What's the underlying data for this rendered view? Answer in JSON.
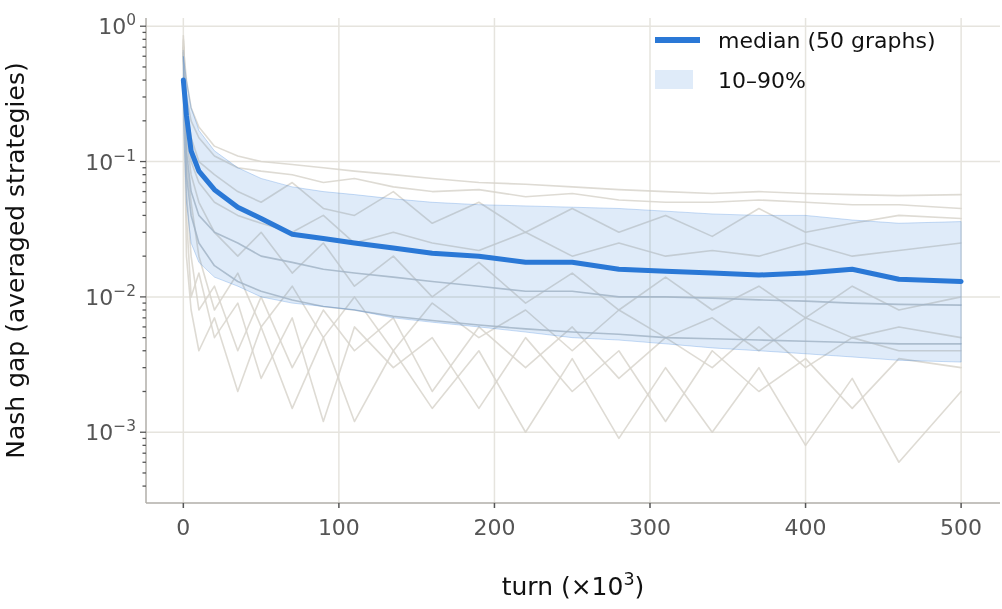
{
  "chart_data": {
    "type": "line",
    "xlabel": "turn (×10$^{3}$)",
    "ylabel": "Nash gap (averaged strategies)",
    "log": "y",
    "grid": true,
    "legend": "top right",
    "annotations": [
      "10–90%"
    ],
    "xlim": [
      -24,
      525
    ],
    "xticks": [
      0,
      100,
      200,
      300,
      400,
      500
    ],
    "ylim": [
      0.0003,
      1.15
    ],
    "yticks": [
      {
        "value": 0.0004,
        "label": null
      },
      {
        "value": 0.0005,
        "label": null
      },
      {
        "value": 0.0006,
        "label": null
      },
      {
        "value": 0.0007,
        "label": null
      },
      {
        "value": 0.0008,
        "label": null
      },
      {
        "value": 0.0009,
        "label": null
      },
      {
        "value": 0.001,
        "label": "10$^{−3}$"
      },
      {
        "value": 0.002,
        "label": null
      },
      {
        "value": 0.003,
        "label": null
      },
      {
        "value": 0.004,
        "label": null
      },
      {
        "value": 0.005,
        "label": null
      },
      {
        "value": 0.006,
        "label": null
      },
      {
        "value": 0.007,
        "label": null
      },
      {
        "value": 0.008,
        "label": null
      },
      {
        "value": 0.009,
        "label": null
      },
      {
        "value": 0.01,
        "label": "10$^{−2}$"
      },
      {
        "value": 0.02,
        "label": null
      },
      {
        "value": 0.03,
        "label": null
      },
      {
        "value": 0.04,
        "label": null
      },
      {
        "value": 0.05,
        "label": null
      },
      {
        "value": 0.06,
        "label": null
      },
      {
        "value": 0.07,
        "label": null
      },
      {
        "value": 0.08,
        "label": null
      },
      {
        "value": 0.09,
        "label": null
      },
      {
        "value": 0.1,
        "label": "10$^{−1}$"
      },
      {
        "value": 0.2,
        "label": null
      },
      {
        "value": 0.3,
        "label": null
      },
      {
        "value": 0.4,
        "label": null
      },
      {
        "value": 0.5,
        "label": null
      },
      {
        "value": 0.6,
        "label": null
      },
      {
        "value": 0.7,
        "label": null
      },
      {
        "value": 0.8,
        "label": null
      },
      {
        "value": 0.9,
        "label": null
      },
      {
        "value": 1,
        "label": "10$^{0}$"
      }
    ],
    "x": [
      0,
      2,
      5,
      10,
      20,
      35,
      50,
      70,
      90,
      110,
      135,
      160,
      190,
      220,
      250,
      280,
      310,
      340,
      370,
      400,
      430,
      460,
      500
    ],
    "series": [
      {
        "color": "#d8d5cc",
        "values": [
          0.7,
          0.4,
          0.25,
          0.18,
          0.13,
          0.11,
          0.1,
          0.095,
          0.09,
          0.085,
          0.08,
          0.075,
          0.07,
          0.068,
          0.065,
          0.062,
          0.06,
          0.058,
          0.06,
          0.058,
          0.057,
          0.056,
          0.057
        ]
      },
      {
        "color": "#d8d5cc",
        "values": [
          0.6,
          0.3,
          0.2,
          0.15,
          0.11,
          0.09,
          0.085,
          0.08,
          0.07,
          0.075,
          0.065,
          0.06,
          0.062,
          0.055,
          0.058,
          0.052,
          0.05,
          0.05,
          0.052,
          0.05,
          0.048,
          0.048,
          0.045
        ]
      },
      {
        "color": "#d8d5cc",
        "values": [
          0.85,
          0.25,
          0.15,
          0.1,
          0.08,
          0.06,
          0.05,
          0.07,
          0.045,
          0.04,
          0.06,
          0.035,
          0.05,
          0.03,
          0.045,
          0.03,
          0.04,
          0.028,
          0.045,
          0.03,
          0.035,
          0.04,
          0.038
        ]
      },
      {
        "color": "#d8d5cc",
        "values": [
          0.8,
          0.2,
          0.1,
          0.07,
          0.05,
          0.04,
          0.035,
          0.03,
          0.04,
          0.025,
          0.03,
          0.025,
          0.022,
          0.03,
          0.02,
          0.025,
          0.02,
          0.022,
          0.02,
          0.025,
          0.02,
          0.022,
          0.025
        ]
      },
      {
        "color": "#d8d5cc",
        "values": [
          0.75,
          0.15,
          0.08,
          0.05,
          0.03,
          0.02,
          0.03,
          0.015,
          0.025,
          0.012,
          0.02,
          0.01,
          0.018,
          0.009,
          0.015,
          0.008,
          0.014,
          0.008,
          0.012,
          0.007,
          0.012,
          0.008,
          0.01
        ]
      },
      {
        "color": "#d8d5cc",
        "values": [
          0.7,
          0.1,
          0.05,
          0.02,
          0.008,
          0.015,
          0.006,
          0.012,
          0.005,
          0.01,
          0.004,
          0.009,
          0.005,
          0.008,
          0.004,
          0.008,
          0.005,
          0.007,
          0.004,
          0.007,
          0.005,
          0.006,
          0.005
        ]
      },
      {
        "color": "#d8d5cc",
        "values": [
          0.78,
          0.06,
          0.02,
          0.008,
          0.012,
          0.004,
          0.01,
          0.003,
          0.008,
          0.004,
          0.007,
          0.002,
          0.006,
          0.003,
          0.006,
          0.0025,
          0.005,
          0.003,
          0.006,
          0.003,
          0.005,
          0.004,
          0.004
        ]
      },
      {
        "color": "#d8d5cc",
        "values": [
          0.72,
          0.04,
          0.01,
          0.015,
          0.005,
          0.009,
          0.0025,
          0.007,
          0.0012,
          0.006,
          0.003,
          0.005,
          0.0015,
          0.005,
          0.002,
          0.004,
          0.0012,
          0.004,
          0.002,
          0.0035,
          0.0015,
          0.0035,
          0.003
        ]
      },
      {
        "color": "#d8d5cc",
        "values": [
          0.68,
          0.02,
          0.008,
          0.004,
          0.007,
          0.002,
          0.006,
          0.0015,
          0.005,
          0.0012,
          0.004,
          0.0015,
          0.004,
          0.001,
          0.0035,
          0.0009,
          0.003,
          0.001,
          0.003,
          0.0008,
          0.0025,
          0.0006,
          0.002
        ]
      },
      {
        "color": "#b9bfc4",
        "values": [
          0.66,
          0.12,
          0.06,
          0.04,
          0.03,
          0.025,
          0.02,
          0.018,
          0.016,
          0.015,
          0.014,
          0.013,
          0.012,
          0.011,
          0.011,
          0.01,
          0.01,
          0.0098,
          0.0095,
          0.0093,
          0.009,
          0.0088,
          0.0087
        ]
      },
      {
        "color": "#b9bfc4",
        "values": [
          0.64,
          0.08,
          0.04,
          0.025,
          0.017,
          0.013,
          0.011,
          0.0095,
          0.0085,
          0.008,
          0.0072,
          0.0067,
          0.0062,
          0.0058,
          0.0055,
          0.0053,
          0.005,
          0.0049,
          0.0048,
          0.0047,
          0.0046,
          0.0045,
          0.0045
        ]
      },
      {
        "name": "median (50 graphs)",
        "color": "#2a78d6",
        "lower": [
          0.2,
          0.05,
          0.025,
          0.018,
          0.014,
          0.012,
          0.01,
          0.009,
          0.0085,
          0.008,
          0.007,
          0.0065,
          0.006,
          0.0055,
          0.005,
          0.0048,
          0.0045,
          0.0042,
          0.004,
          0.0038,
          0.0036,
          0.0034,
          0.0033
        ],
        "upper": [
          0.6,
          0.4,
          0.25,
          0.17,
          0.12,
          0.09,
          0.075,
          0.065,
          0.06,
          0.057,
          0.053,
          0.05,
          0.048,
          0.047,
          0.046,
          0.045,
          0.043,
          0.041,
          0.04,
          0.04,
          0.037,
          0.035,
          0.036
        ],
        "values": [
          0.4,
          0.22,
          0.12,
          0.085,
          0.062,
          0.046,
          0.038,
          0.029,
          0.027,
          0.025,
          0.023,
          0.021,
          0.02,
          0.018,
          0.018,
          0.016,
          0.0155,
          0.015,
          0.0145,
          0.015,
          0.016,
          0.0135,
          0.013
        ]
      }
    ]
  }
}
